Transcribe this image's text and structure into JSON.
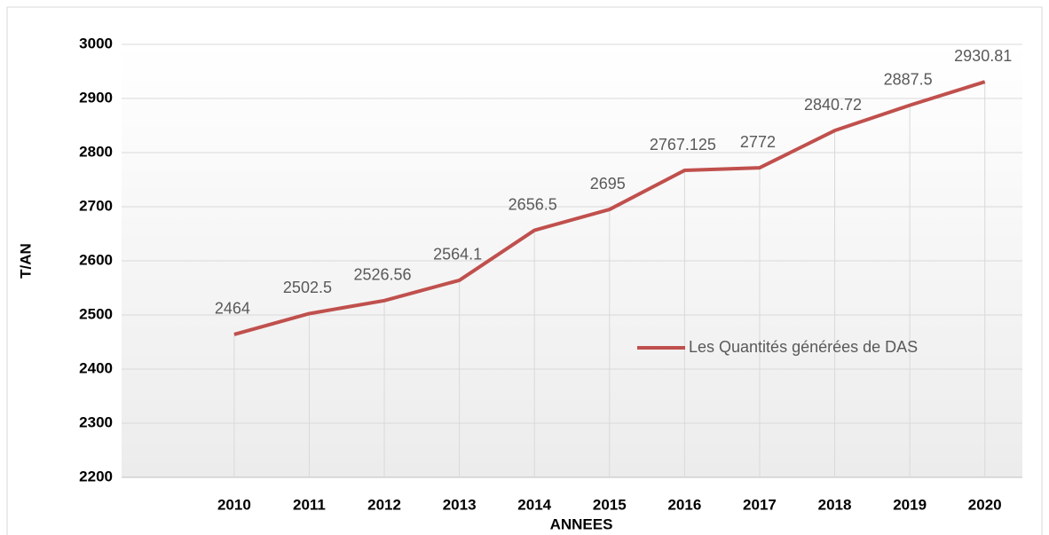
{
  "chart_data": {
    "type": "line",
    "x_label": "ANNEES",
    "y_label": "T/AN",
    "categories": [
      null,
      "2010",
      "2011",
      "2012",
      "2013",
      "2014",
      "2015",
      "2016",
      "2017",
      "2018",
      "2019",
      "2020"
    ],
    "series": [
      {
        "name": "Les Quantités générées de DAS",
        "color": "#c0504d",
        "values": [
          null,
          2464,
          2502.5,
          2526.56,
          2564.1,
          2656.5,
          2695,
          2767.125,
          2772,
          2840.72,
          2887.5,
          2930.81
        ]
      }
    ],
    "ylim": [
      2200,
      3000
    ],
    "yticks": [
      2200,
      2300,
      2400,
      2500,
      2600,
      2700,
      2800,
      2900,
      3000
    ],
    "grid": true,
    "legend": "right"
  }
}
